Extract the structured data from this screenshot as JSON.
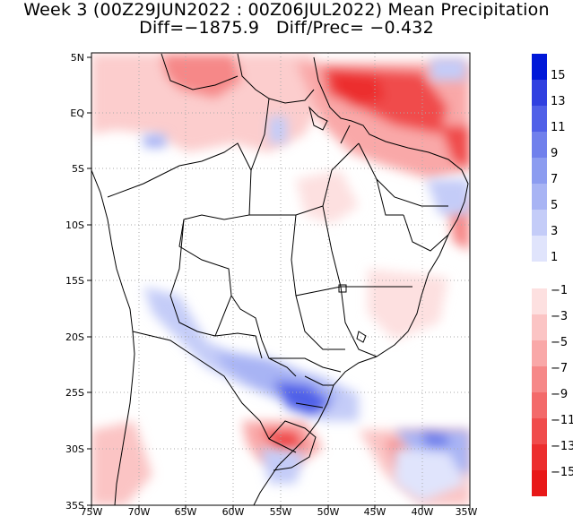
{
  "title": {
    "line1": "Week 3 (00Z29JUN2022 : 00Z06JUL2022) Mean Precipitation",
    "line2": "Diff=−1875.9   Diff/Prec= −0.432"
  },
  "map": {
    "region": "South America (Brazil)",
    "lon_labels": [
      "75W",
      "70W",
      "65W",
      "60W",
      "55W",
      "50W",
      "45W",
      "40W",
      "35W"
    ],
    "lat_labels": [
      "5N",
      "EQ",
      "5S",
      "10S",
      "15S",
      "20S",
      "25S",
      "30S",
      "35S"
    ],
    "grid": "dotted"
  },
  "colorbar": {
    "positive": [
      {
        "label": "15",
        "color": "#0018d8"
      },
      {
        "label": "13",
        "color": "#3040e0"
      },
      {
        "label": "11",
        "color": "#5060e8"
      },
      {
        "label": "9",
        "color": "#7080ec"
      },
      {
        "label": "7",
        "color": "#8c9cf0"
      },
      {
        "label": "5",
        "color": "#a8b4f4"
      },
      {
        "label": "3",
        "color": "#c4ccf8"
      },
      {
        "label": "1",
        "color": "#e0e4fc"
      }
    ],
    "negative": [
      {
        "label": "−1",
        "color": "#fde0e0"
      },
      {
        "label": "−3",
        "color": "#fbc4c4"
      },
      {
        "label": "−5",
        "color": "#f9a8a8"
      },
      {
        "label": "−7",
        "color": "#f68888"
      },
      {
        "label": "−9",
        "color": "#f36a6a"
      },
      {
        "label": "−11",
        "color": "#f04c4c"
      },
      {
        "label": "−13",
        "color": "#ec2e2e"
      },
      {
        "label": "−15",
        "color": "#e81818"
      }
    ]
  }
}
